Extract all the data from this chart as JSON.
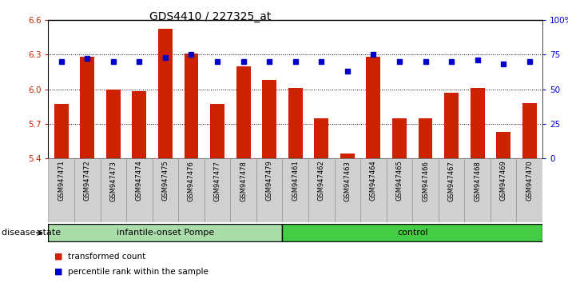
{
  "title": "GDS4410 / 227325_at",
  "samples": [
    "GSM947471",
    "GSM947472",
    "GSM947473",
    "GSM947474",
    "GSM947475",
    "GSM947476",
    "GSM947477",
    "GSM947478",
    "GSM947479",
    "GSM947461",
    "GSM947462",
    "GSM947463",
    "GSM947464",
    "GSM947465",
    "GSM947466",
    "GSM947467",
    "GSM947468",
    "GSM947469",
    "GSM947470"
  ],
  "transformed_count": [
    5.87,
    6.28,
    6.0,
    5.98,
    6.52,
    6.31,
    5.87,
    6.2,
    6.08,
    6.01,
    5.75,
    5.44,
    6.28,
    5.75,
    5.75,
    5.97,
    6.01,
    5.63,
    5.88
  ],
  "percentile_rank": [
    70,
    72,
    70,
    70,
    73,
    75,
    70,
    70,
    70,
    70,
    70,
    63,
    75,
    70,
    70,
    70,
    71,
    68,
    70
  ],
  "groups": [
    {
      "label": "infantile-onset Pompe",
      "start": 0,
      "end": 9
    },
    {
      "label": "control",
      "start": 9,
      "end": 19
    }
  ],
  "group_colors": [
    "#AADDAA",
    "#44CC44"
  ],
  "ylim_left": [
    5.4,
    6.6
  ],
  "ylim_right": [
    0,
    100
  ],
  "yticks_left": [
    5.4,
    5.7,
    6.0,
    6.3,
    6.6
  ],
  "yticks_right": [
    0,
    25,
    50,
    75,
    100
  ],
  "ytick_labels_right": [
    "0",
    "25",
    "50",
    "75",
    "100%"
  ],
  "bar_color": "#CC2200",
  "dot_color": "#0000CC",
  "bar_bottom": 5.4,
  "legend_items": [
    {
      "label": "transformed count",
      "color": "#CC2200"
    },
    {
      "label": "percentile rank within the sample",
      "color": "#0000CC"
    }
  ],
  "disease_state_label": "disease state",
  "title_fontsize": 10,
  "tick_fontsize": 7.5,
  "label_fontsize": 8,
  "sample_fontsize": 6
}
